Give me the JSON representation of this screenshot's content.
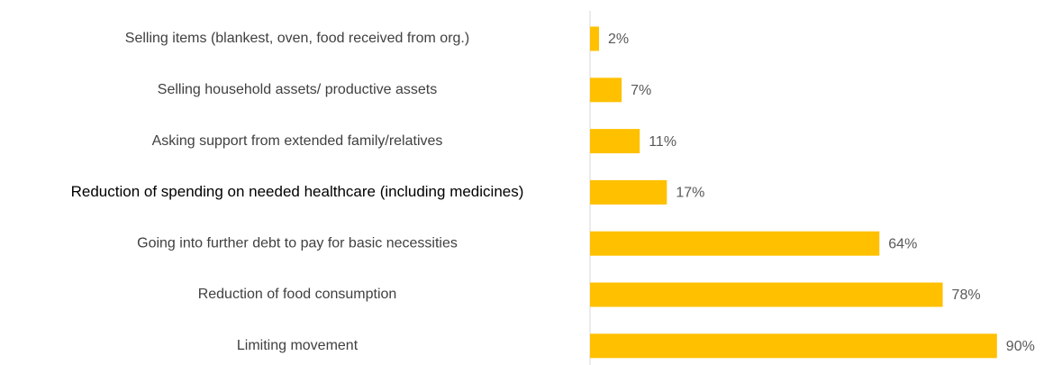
{
  "chart_data": {
    "type": "barh",
    "categories": [
      "Selling items (blankest, oven, food received from org.)",
      "Selling household assets/ productive assets",
      "Asking support from extended family/relatives",
      "Reduction of spending on needed healthcare (including medicines)",
      "Going into further debt to pay for basic necessities",
      "Reduction of food consumption",
      "Limiting movement"
    ],
    "values": [
      2,
      7,
      11,
      17,
      64,
      78,
      90
    ],
    "value_labels": [
      "2%",
      "7%",
      "11%",
      "17%",
      "64%",
      "78%",
      "90%"
    ],
    "color": "#ffc000"
  }
}
